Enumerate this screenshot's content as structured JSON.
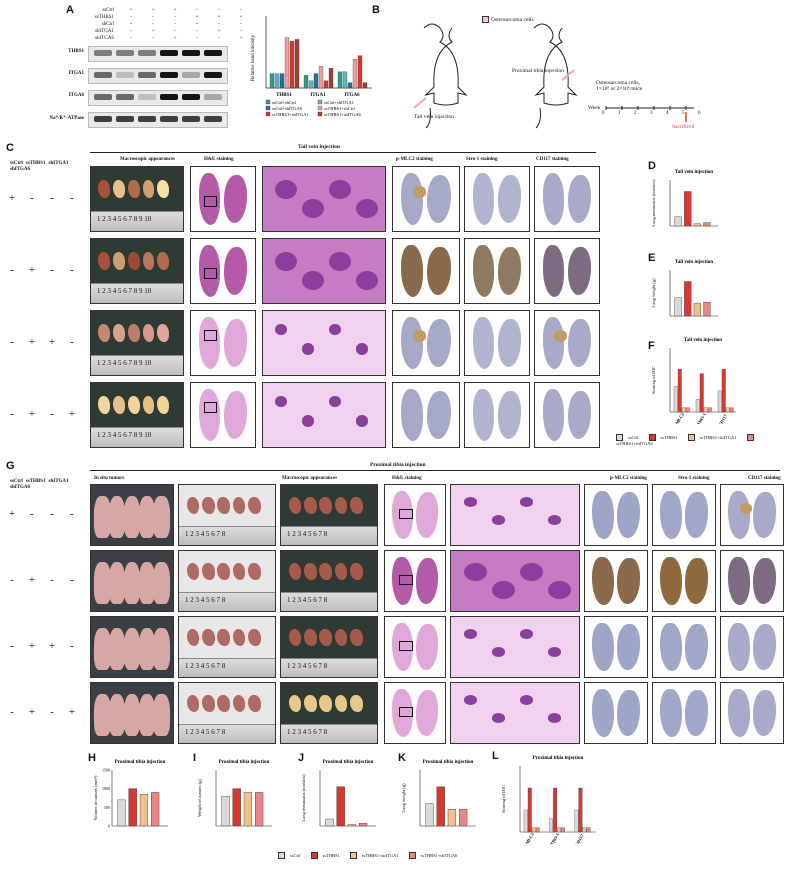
{
  "panels": {
    "A": "A",
    "B": "B",
    "C": "C",
    "D": "D",
    "E": "E",
    "F": "F",
    "G": "G",
    "H": "H",
    "I": "I",
    "J": "J",
    "K": "K",
    "L": "L"
  },
  "panelA": {
    "conditions": [
      "ssCtrl",
      "ssTHBS1",
      "shCtrl",
      "shITGA1",
      "shITGA6"
    ],
    "signs": [
      [
        "+",
        "+",
        "+",
        "-",
        "-",
        "-"
      ],
      [
        "-",
        "-",
        "-",
        "+",
        "+",
        "+"
      ],
      [
        "+",
        "-",
        "-",
        "+",
        "-",
        "-"
      ],
      [
        "-",
        "+",
        "-",
        "-",
        "+",
        "-"
      ],
      [
        "-",
        "-",
        "+",
        "-",
        "-",
        "+"
      ]
    ],
    "blots": [
      "THBS1",
      "ITGA1",
      "ITGA6",
      "Na⁺/K⁺-ATPase"
    ],
    "chart_ylabel": "Relative band intensity",
    "chart_groups": [
      "THBS1",
      "ITGA1",
      "ITGA6"
    ],
    "legend": [
      "ssCtrl+shCtrl",
      "ssCtrl+shITGA1",
      "ssCtrl+shITGA6",
      "ssTHBS1+shCtrl",
      "ssTHBS1+shITGA1",
      "ssTHBS1+shITGA6"
    ]
  },
  "panelB": {
    "legend": "Osteosarcoma cells",
    "tail": "Tail vein injection",
    "tibia": "Proximal tibia injection",
    "cells": "Osteosarcoma cells,\n1×10⁶ or 2×10⁶/mice",
    "week": "Week",
    "weeks": [
      "0",
      "1",
      "2",
      "3",
      "4",
      "5",
      "6"
    ],
    "sacrificed": "Sacrificed"
  },
  "panelC": {
    "title": "Tail vein injection",
    "row_labels": [
      "ssCtrl",
      "ssTHBS1",
      "shITGA1",
      "shITGA6"
    ],
    "columns": [
      "Macroscopic appearances",
      "H&E staining",
      "p-MLC2 staining",
      "Stro-1 staining",
      "CD117 staining"
    ],
    "rows": [
      [
        "+",
        "-",
        "-",
        "-"
      ],
      [
        "-",
        "+",
        "-",
        "-"
      ],
      [
        "-",
        "+",
        "+",
        "-"
      ],
      [
        "-",
        "+",
        "-",
        "+"
      ]
    ],
    "ruler": "1 2 3 4 5 6 7 8 9 10"
  },
  "panelG": {
    "title": "Proximal tibia injection",
    "row_labels": [
      "ssCtrl",
      "ssTHBS1",
      "shITGA1",
      "shITGA6"
    ],
    "columns": [
      "In situ tumors",
      "Macroscopic appearances",
      "H&E staining",
      "p-MLC2 staining",
      "Stro-1 staining",
      "CD117 staining"
    ],
    "rows": [
      [
        "+",
        "-",
        "-",
        "-"
      ],
      [
        "-",
        "+",
        "-",
        "-"
      ],
      [
        "-",
        "+",
        "+",
        "-"
      ],
      [
        "-",
        "+",
        "-",
        "+"
      ]
    ],
    "ruler": "1 2 3 4 5 6 7 8"
  },
  "legendCF": [
    "ssCtrl",
    "ssTHBS1",
    "ssTHBS1+shITGA1",
    "ssTHBS1+shITGA6"
  ],
  "colors": {
    "c1": "#d9d9d9",
    "c2": "#d7382f",
    "c3": "#f3c18c",
    "c4": "#e98787",
    "teal": "#3a9c9c",
    "blue": "#2b6d9e"
  },
  "chart_data": [
    {
      "panel": "D",
      "type": "bar",
      "title": "Tail vein injection",
      "ylabel": "Lung metastasis (nodules)",
      "categories": [
        "ssCtrl",
        "ssTHBS1",
        "ssTHBS1+shITGA1",
        "ssTHBS1+shITGA6"
      ],
      "values": [
        8,
        30,
        2,
        3
      ],
      "ylim": [
        0,
        40
      ]
    },
    {
      "panel": "E",
      "type": "bar",
      "title": "Tail vein injection",
      "ylabel": "Lung weight (g)",
      "categories": [
        "ssCtrl",
        "ssTHBS1",
        "ssTHBS1+shITGA1",
        "ssTHBS1+shITGA6"
      ],
      "values": [
        0.4,
        0.75,
        0.28,
        0.3
      ],
      "ylim": [
        0,
        1.0
      ]
    },
    {
      "panel": "F",
      "type": "bar",
      "title": "Tail vein injection",
      "ylabel": "Scoring of IHC",
      "categories": [
        "p-MLC2",
        "STRO-1",
        "CD117"
      ],
      "series": [
        {
          "name": "ssCtrl",
          "values": [
            6,
            3,
            5
          ]
        },
        {
          "name": "ssTHBS1",
          "values": [
            10,
            9,
            10
          ]
        },
        {
          "name": "ssTHBS1+shITGA1",
          "values": [
            1,
            1,
            1
          ]
        },
        {
          "name": "ssTHBS1+shITGA6",
          "values": [
            1,
            1,
            1
          ]
        }
      ],
      "ylim": [
        0,
        15
      ]
    },
    {
      "panel": "H",
      "type": "bar",
      "title": "Proximal tibia injection",
      "ylabel": "Volume of tumors (mm³)",
      "categories": [
        "ssCtrl",
        "ssTHBS1",
        "ssTHBS1+shITGA1",
        "ssTHBS1+shITGA6"
      ],
      "values": [
        700,
        1000,
        850,
        900
      ],
      "ylim": [
        0,
        1500
      ],
      "yticks": [
        "0",
        "500",
        "1000",
        "1500"
      ]
    },
    {
      "panel": "I",
      "type": "bar",
      "title": "Proximal tibia injection",
      "ylabel": "Weight of tumors (g)",
      "categories": [
        "ssCtrl",
        "ssTHBS1",
        "ssTHBS1+shITGA1",
        "ssTHBS1+shITGA6"
      ],
      "values": [
        0.8,
        1.0,
        0.9,
        0.9
      ],
      "ylim": [
        0,
        1.5
      ]
    },
    {
      "panel": "J",
      "type": "bar",
      "title": "Proximal tibia injection",
      "ylabel": "Lung metastasis (nodules)",
      "categories": [
        "ssCtrl",
        "ssTHBS1",
        "ssTHBS1+shITGA1",
        "ssTHBS1+shITGA6"
      ],
      "values": [
        5,
        28,
        1,
        2
      ],
      "ylim": [
        0,
        40
      ]
    },
    {
      "panel": "K",
      "type": "bar",
      "title": "Proximal tibia injection",
      "ylabel": "Lung weight (g)",
      "categories": [
        "ssCtrl",
        "ssTHBS1",
        "ssTHBS1+shITGA1",
        "ssTHBS1+shITGA6"
      ],
      "values": [
        0.4,
        0.7,
        0.3,
        0.3
      ],
      "ylim": [
        0,
        1.0
      ]
    },
    {
      "panel": "L",
      "type": "bar",
      "title": "Proximal tibia injection",
      "ylabel": "Scoring of IHC",
      "categories": [
        "p-MLC2",
        "STRO-1",
        "CD117"
      ],
      "series": [
        {
          "name": "ssCtrl",
          "values": [
            5,
            3,
            5
          ]
        },
        {
          "name": "ssTHBS1",
          "values": [
            10,
            10,
            10
          ]
        },
        {
          "name": "ssTHBS1+shITGA1",
          "values": [
            1,
            1,
            1
          ]
        },
        {
          "name": "ssTHBS1+shITGA6",
          "values": [
            1,
            1,
            1
          ]
        }
      ],
      "ylim": [
        0,
        15
      ]
    },
    {
      "panel": "A-chart",
      "type": "bar",
      "ylabel": "Relative band intensity",
      "categories": [
        "THBS1",
        "ITGA1",
        "ITGA6"
      ],
      "series": [
        {
          "name": "ssCtrl+shCtrl",
          "values": [
            0.8,
            0.7,
            0.9
          ]
        },
        {
          "name": "ssCtrl+shITGA1",
          "values": [
            0.8,
            0.4,
            0.9
          ]
        },
        {
          "name": "ssCtrl+shITGA6",
          "values": [
            0.8,
            0.8,
            0.3
          ]
        },
        {
          "name": "ssTHBS1+shCtrl",
          "values": [
            2.8,
            1.2,
            1.6
          ]
        },
        {
          "name": "ssTHBS1+shITGA1",
          "values": [
            2.6,
            0.4,
            1.8
          ]
        },
        {
          "name": "ssTHBS1+shITGA6",
          "values": [
            2.7,
            1.1,
            0.3
          ]
        }
      ],
      "ylim": [
        0,
        4
      ]
    }
  ]
}
